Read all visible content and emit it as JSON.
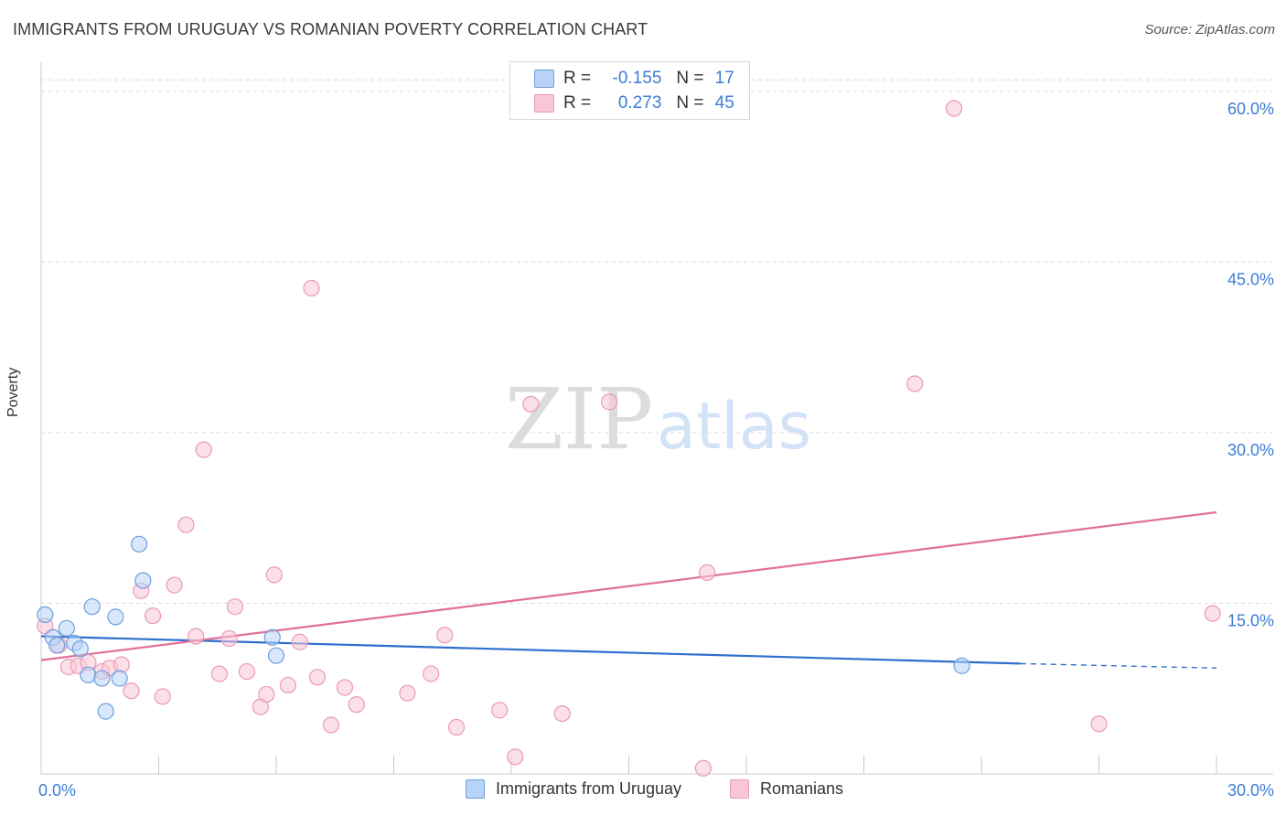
{
  "title": "IMMIGRANTS FROM URUGUAY VS ROMANIAN POVERTY CORRELATION CHART",
  "source": "Source: ZipAtlas.com",
  "watermark": {
    "zip": "ZIP",
    "atlas": "atlas"
  },
  "legend": {
    "r_label": "R =",
    "n_label": "N =",
    "series": [
      {
        "r": "-0.155",
        "n": "17"
      },
      {
        "r": "0.273",
        "n": "45"
      }
    ]
  },
  "colors": {
    "uruguay_fill": "#b8d3f5",
    "uruguay_stroke": "#6d9fe0",
    "uruguay_line": "#2f6fce",
    "romanian_fill": "#f9c6d6",
    "romanian_stroke": "#e99ab4",
    "romanian_line": "#e0709a",
    "axis_label": "#3d7dd8",
    "grid": "#dcdcdc"
  },
  "chart_data": {
    "type": "scatter",
    "title": "IMMIGRANTS FROM URUGUAY VS ROMANIAN POVERTY CORRELATION CHART",
    "xlabel": "",
    "ylabel": "Poverty",
    "xlim": [
      0,
      30
    ],
    "ylim": [
      0,
      62
    ],
    "x_tick_labels": [
      "0.0%",
      "30.0%"
    ],
    "y_ticks": [
      15,
      30,
      45,
      60
    ],
    "y_tick_labels": [
      "15.0%",
      "30.0%",
      "45.0%",
      "60.0%"
    ],
    "series": [
      {
        "name": "Immigrants from Uruguay",
        "r": -0.155,
        "n": 17,
        "points": [
          [
            0.1,
            14.0
          ],
          [
            0.3,
            12.0
          ],
          [
            0.4,
            11.3
          ],
          [
            0.65,
            12.8
          ],
          [
            0.85,
            11.5
          ],
          [
            1.0,
            11.0
          ],
          [
            1.2,
            8.7
          ],
          [
            1.3,
            14.7
          ],
          [
            1.55,
            8.4
          ],
          [
            1.65,
            5.5
          ],
          [
            1.9,
            13.8
          ],
          [
            2.0,
            8.4
          ],
          [
            2.5,
            20.2
          ],
          [
            2.6,
            17.0
          ],
          [
            5.9,
            12.0
          ],
          [
            6.0,
            10.4
          ],
          [
            23.5,
            9.5
          ]
        ],
        "trend": {
          "x": [
            0,
            25.0,
            30
          ],
          "y": [
            12.1,
            9.7,
            9.3
          ],
          "dashed_from": 25.0
        }
      },
      {
        "name": "Romanians",
        "r": 0.273,
        "n": 45,
        "points": [
          [
            0.1,
            13.0
          ],
          [
            0.45,
            11.3
          ],
          [
            0.7,
            9.4
          ],
          [
            0.95,
            9.5
          ],
          [
            1.2,
            9.8
          ],
          [
            1.55,
            9.0
          ],
          [
            1.75,
            9.3
          ],
          [
            2.05,
            9.6
          ],
          [
            2.3,
            7.3
          ],
          [
            2.55,
            16.1
          ],
          [
            2.85,
            13.9
          ],
          [
            3.1,
            6.8
          ],
          [
            3.4,
            16.6
          ],
          [
            3.7,
            21.9
          ],
          [
            3.95,
            12.1
          ],
          [
            4.15,
            28.5
          ],
          [
            4.55,
            8.8
          ],
          [
            4.8,
            11.9
          ],
          [
            4.95,
            14.7
          ],
          [
            5.25,
            9.0
          ],
          [
            5.6,
            5.9
          ],
          [
            5.75,
            7.0
          ],
          [
            5.95,
            17.5
          ],
          [
            6.3,
            7.8
          ],
          [
            6.6,
            11.6
          ],
          [
            6.9,
            42.7
          ],
          [
            7.05,
            8.5
          ],
          [
            7.4,
            4.3
          ],
          [
            7.75,
            7.6
          ],
          [
            8.05,
            6.1
          ],
          [
            9.35,
            7.1
          ],
          [
            9.95,
            8.8
          ],
          [
            10.3,
            12.2
          ],
          [
            10.6,
            4.1
          ],
          [
            11.7,
            5.6
          ],
          [
            12.1,
            1.5
          ],
          [
            12.5,
            32.5
          ],
          [
            13.3,
            5.3
          ],
          [
            14.5,
            32.7
          ],
          [
            16.9,
            0.5
          ],
          [
            17.0,
            17.7
          ],
          [
            22.3,
            34.3
          ],
          [
            23.3,
            58.5
          ],
          [
            27.0,
            4.4
          ],
          [
            29.9,
            14.1
          ]
        ],
        "trend": {
          "x": [
            0,
            30
          ],
          "y": [
            10.0,
            23.0
          ]
        }
      }
    ]
  },
  "bottom_legend": {
    "items": [
      {
        "label": "Immigrants from Uruguay"
      },
      {
        "label": "Romanians"
      }
    ]
  }
}
